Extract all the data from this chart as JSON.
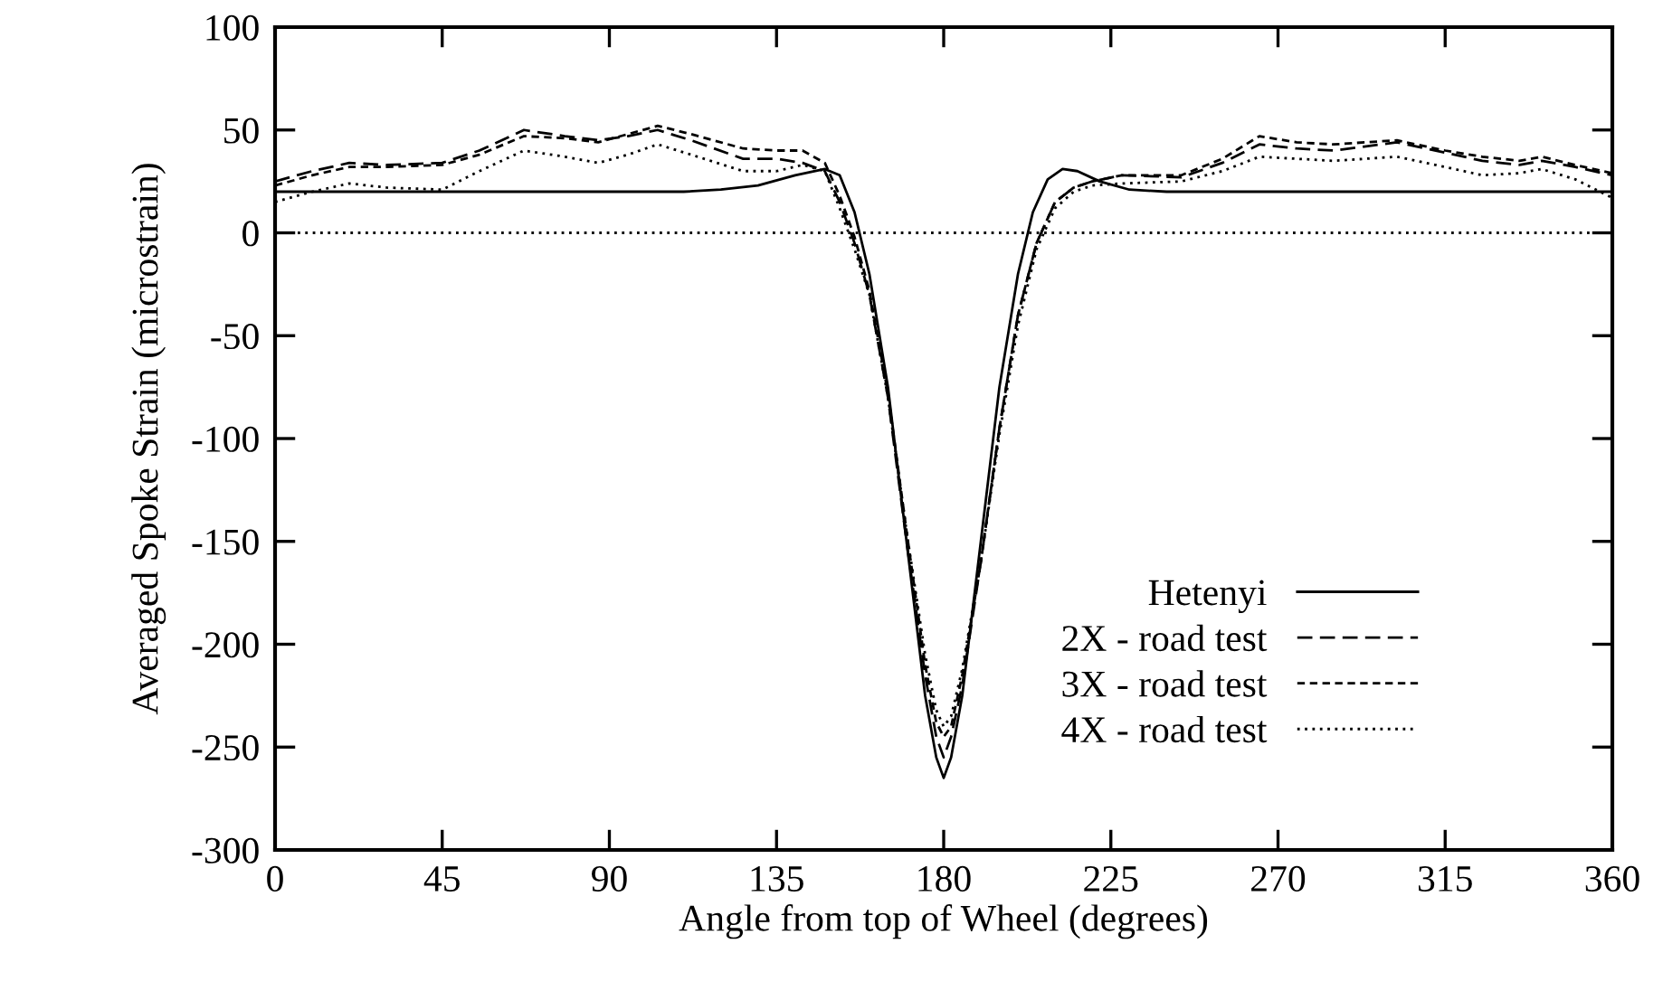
{
  "chart_data": {
    "type": "line",
    "xlabel": "Angle from top of Wheel (degrees)",
    "ylabel": "Averaged Spoke Strain (microstrain)",
    "xlim": [
      0,
      360
    ],
    "xticks": [
      0,
      45,
      90,
      135,
      180,
      225,
      270,
      315,
      360
    ],
    "ylim": [
      -300,
      100
    ],
    "yticks": [
      -300,
      -250,
      -200,
      -150,
      -100,
      -50,
      0,
      50,
      100
    ],
    "grid": false,
    "legend": "bottom right",
    "marker": "none",
    "ref_lines": [
      {
        "axis": "y",
        "value": 0,
        "color": "#000000",
        "line_style": "dotted"
      }
    ],
    "series": [
      {
        "name": "Hetenyi",
        "color": "#000000",
        "line_style": "solid",
        "x": [
          0,
          30,
          60,
          90,
          110,
          120,
          130,
          140,
          148,
          152,
          156,
          160,
          165,
          170,
          175,
          178,
          180,
          182,
          185,
          190,
          195,
          200,
          204,
          208,
          212,
          216,
          222,
          230,
          240,
          270,
          300,
          330,
          360
        ],
        "values": [
          20,
          20,
          20,
          20,
          20,
          21,
          23,
          28,
          31,
          28,
          10,
          -20,
          -75,
          -150,
          -225,
          -255,
          -265,
          -255,
          -225,
          -150,
          -75,
          -20,
          10,
          26,
          31,
          30,
          25,
          21,
          20,
          20,
          20,
          20,
          20
        ]
      },
      {
        "name": "2X - road test",
        "color": "#000000",
        "line_style": "dashed",
        "x": [
          0,
          10,
          20,
          30,
          45,
          55,
          67,
          78,
          87,
          95,
          103,
          112,
          126,
          135,
          142,
          148,
          152,
          156,
          160,
          165,
          170,
          175,
          178,
          180,
          182,
          185,
          190,
          195,
          200,
          205,
          210,
          215,
          220,
          228,
          244,
          255,
          265,
          275,
          285,
          302,
          315,
          325,
          335,
          341,
          350,
          360
        ],
        "values": [
          25,
          30,
          34,
          33,
          34,
          40,
          50,
          47,
          45,
          47,
          50,
          45,
          36,
          36,
          34,
          30,
          15,
          -5,
          -30,
          -80,
          -150,
          -215,
          -245,
          -255,
          -245,
          -220,
          -160,
          -95,
          -40,
          -5,
          15,
          22,
          25,
          28,
          27,
          34,
          43,
          41,
          40,
          44,
          39,
          35,
          33,
          35,
          32,
          28
        ]
      },
      {
        "name": "3X - road test",
        "color": "#000000",
        "line_style": "dashed",
        "x": [
          0,
          10,
          20,
          30,
          45,
          55,
          67,
          78,
          87,
          95,
          103,
          112,
          126,
          135,
          142,
          148,
          152,
          156,
          160,
          165,
          170,
          175,
          178,
          180,
          182,
          185,
          190,
          195,
          200,
          205,
          210,
          215,
          220,
          228,
          244,
          255,
          265,
          275,
          285,
          302,
          315,
          325,
          335,
          341,
          350,
          360
        ],
        "values": [
          23,
          28,
          32,
          32,
          33,
          38,
          47,
          46,
          44,
          48,
          52,
          48,
          41,
          40,
          40,
          34,
          18,
          -2,
          -28,
          -78,
          -145,
          -210,
          -238,
          -245,
          -240,
          -215,
          -160,
          -95,
          -40,
          -5,
          15,
          22,
          25,
          28,
          28,
          36,
          47,
          44,
          43,
          45,
          40,
          37,
          35,
          37,
          33,
          29
        ]
      },
      {
        "name": "4X - road test",
        "color": "#000000",
        "line_style": "dotted",
        "x": [
          0,
          10,
          20,
          30,
          45,
          55,
          67,
          78,
          87,
          95,
          103,
          112,
          126,
          135,
          142,
          148,
          152,
          156,
          160,
          165,
          170,
          175,
          178,
          180,
          182,
          185,
          190,
          195,
          200,
          205,
          210,
          215,
          220,
          228,
          244,
          255,
          265,
          275,
          285,
          302,
          315,
          325,
          335,
          341,
          350,
          360
        ],
        "values": [
          15,
          20,
          24,
          22,
          21,
          30,
          40,
          37,
          34,
          38,
          43,
          38,
          30,
          30,
          33,
          30,
          12,
          -8,
          -30,
          -80,
          -145,
          -205,
          -232,
          -240,
          -235,
          -212,
          -160,
          -98,
          -45,
          -8,
          12,
          20,
          23,
          24,
          25,
          30,
          37,
          36,
          35,
          37,
          32,
          28,
          29,
          31,
          26,
          17
        ]
      }
    ]
  }
}
